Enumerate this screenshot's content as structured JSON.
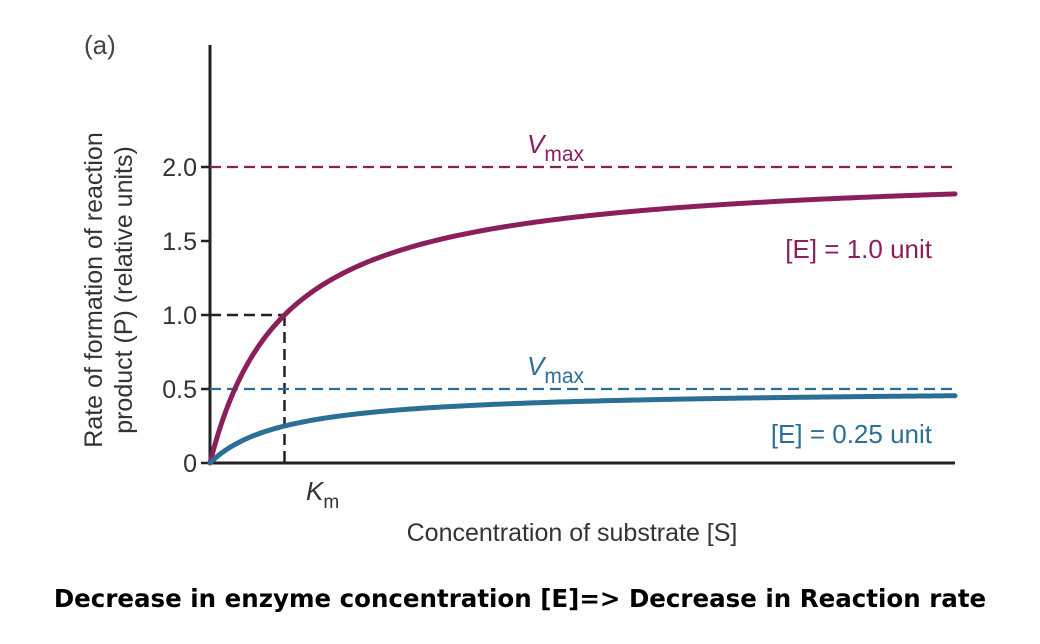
{
  "chart_data": {
    "type": "line",
    "panel_label": "(a)",
    "xlabel": "Concentration of substrate [S]",
    "ylabel_line1": "Rate of formation of reaction",
    "ylabel_line2": "product (P) (relative units)",
    "ylim": [
      0,
      2.0
    ],
    "yticks": [
      "0",
      "0.5",
      "1.0",
      "1.5",
      "2.0"
    ],
    "ytick_values": [
      0,
      0.5,
      1.0,
      1.5,
      2.0
    ],
    "km_label": "K",
    "km_subscript": "m",
    "km_value": 1,
    "xlim": [
      0,
      10
    ],
    "grid": false,
    "series": [
      {
        "name": "[E] = 1.0 unit",
        "vmax": 2.0,
        "km": 1,
        "color": "#8b1f5c",
        "vmax_label": "V",
        "vmax_subscript": "max"
      },
      {
        "name": "[E] = 0.25 unit",
        "vmax": 0.5,
        "km": 1,
        "color": "#2c6f95",
        "vmax_label": "V",
        "vmax_subscript": "max"
      }
    ]
  },
  "caption": "Decrease in enzyme concentration [E]=> Decrease in Reaction rate"
}
